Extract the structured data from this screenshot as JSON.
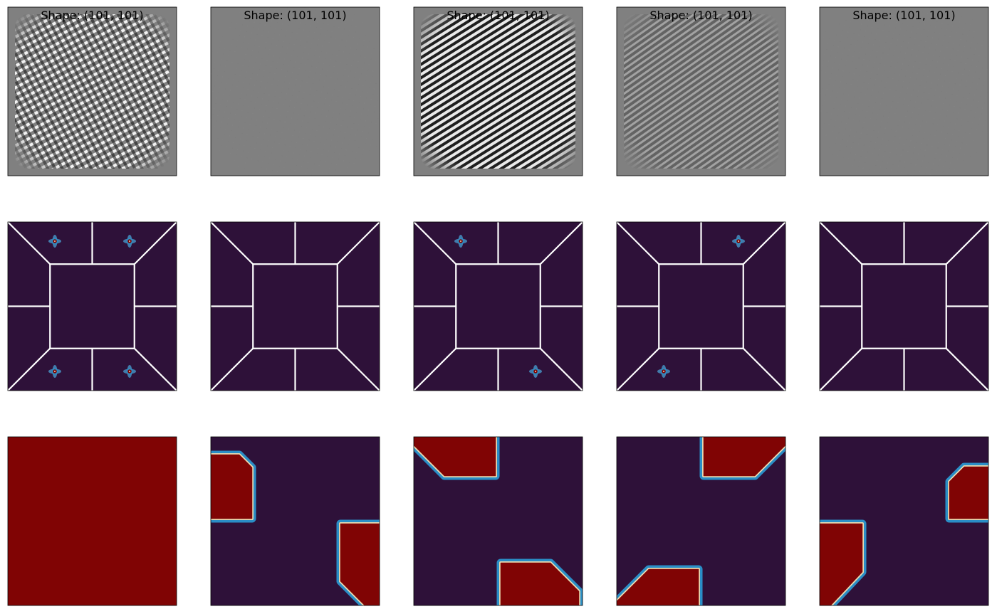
{
  "chart_data": {
    "type": "heatmap",
    "layout": {
      "rows": 3,
      "cols": 5
    },
    "grid": false,
    "colors": {
      "gray": "#808080",
      "dark": "#2e1139",
      "red": "#800404",
      "lightblue": "#4a9fd2",
      "cyan": "#2a8ec6",
      "cream": "#e8d9b0",
      "white": "#ffffff"
    },
    "titles": [
      "Shape: (101, 101)",
      "Shape: (101, 101)",
      "Shape: (101, 101)",
      "Shape: (101, 101)",
      "Shape: (101, 101)"
    ],
    "rows": [
      {
        "kind": "spatial-pattern",
        "panels": [
          {
            "contrast": 1.0,
            "orientation": "crosshatch"
          },
          {
            "contrast": 0.05,
            "orientation": "flat"
          },
          {
            "contrast": 0.95,
            "orientation": "diagonal"
          },
          {
            "contrast": 0.55,
            "orientation": "diagonal-fine"
          },
          {
            "contrast": 0.05,
            "orientation": "flat"
          }
        ]
      },
      {
        "kind": "spectrum",
        "regions": 9,
        "panels": [
          {
            "peaks": [
              "top-left",
              "top-right",
              "bottom-left",
              "bottom-right"
            ]
          },
          {
            "peaks": []
          },
          {
            "peaks": [
              "top-left",
              "bottom-right"
            ]
          },
          {
            "peaks": [
              "top-right",
              "bottom-left"
            ]
          },
          {
            "peaks": []
          }
        ]
      },
      {
        "kind": "region-mask",
        "panels": [
          {
            "mask": [
              "all"
            ]
          },
          {
            "mask": [
              "left",
              "bottom-right"
            ]
          },
          {
            "mask": [
              "top-left",
              "bottom"
            ]
          },
          {
            "mask": [
              "top-right",
              "bottom-left"
            ]
          },
          {
            "mask": [
              "right",
              "bottom-left-corner"
            ]
          }
        ]
      }
    ]
  }
}
